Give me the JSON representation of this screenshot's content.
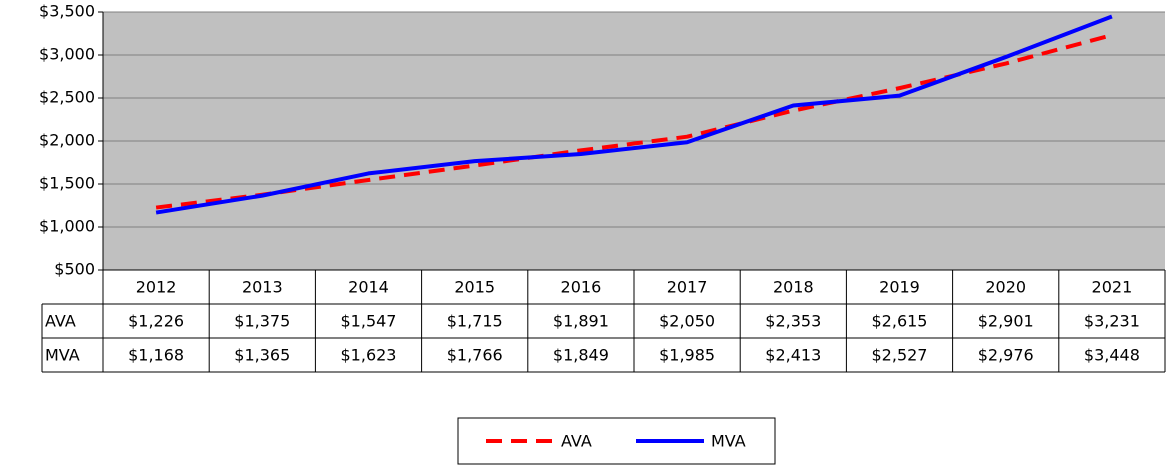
{
  "chart_data": {
    "type": "line",
    "categories": [
      "2012",
      "2013",
      "2014",
      "2015",
      "2016",
      "2017",
      "2018",
      "2019",
      "2020",
      "2021"
    ],
    "series": [
      {
        "name": "AVA",
        "color": "#ff0000",
        "dashed": true,
        "values": [
          1226,
          1375,
          1547,
          1715,
          1891,
          2050,
          2353,
          2615,
          2901,
          3231
        ],
        "value_labels": [
          "$1,226",
          "$1,375",
          "$1,547",
          "$1,715",
          "$1,891",
          "$2,050",
          "$2,353",
          "$2,615",
          "$2,901",
          "$3,231"
        ]
      },
      {
        "name": "MVA",
        "color": "#0000ff",
        "dashed": false,
        "values": [
          1168,
          1365,
          1623,
          1766,
          1849,
          1985,
          2413,
          2527,
          2976,
          3448
        ],
        "value_labels": [
          "$1,168",
          "$1,365",
          "$1,623",
          "$1,766",
          "$1,849",
          "$1,985",
          "$2,413",
          "$2,527",
          "$2,976",
          "$3,448"
        ]
      }
    ],
    "ylim": [
      500,
      3500
    ],
    "yticks": [
      {
        "value": 500,
        "label": "$500"
      },
      {
        "value": 1000,
        "label": "$1,000"
      },
      {
        "value": 1500,
        "label": "$1,500"
      },
      {
        "value": 2000,
        "label": "$2,000"
      },
      {
        "value": 2500,
        "label": "$2,500"
      },
      {
        "value": 3000,
        "label": "$3,000"
      },
      {
        "value": 3500,
        "label": "$3,500"
      }
    ],
    "grid": true,
    "plot_background": "#c0c0c0",
    "legend": "bottom"
  }
}
